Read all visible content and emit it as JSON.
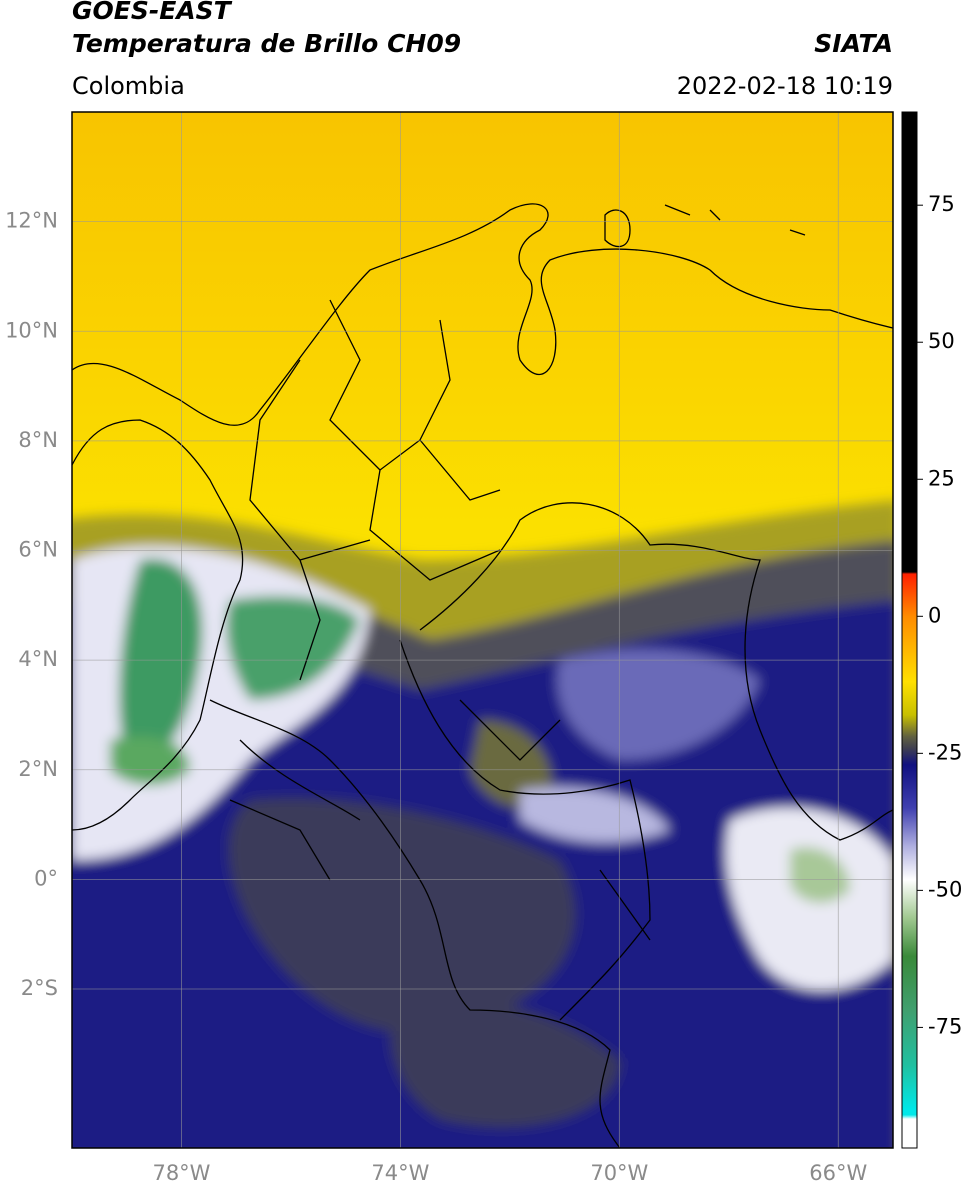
{
  "header": {
    "title": "GOES-EAST",
    "subtitle": "Temperatura de Brillo CH09",
    "brand": "SIATA",
    "region": "Colombia",
    "datetime": "2022-02-18 10:19"
  },
  "map": {
    "xlim": [
      -80,
      -65
    ],
    "ylim": [
      -4.9,
      14
    ],
    "xticks": [
      {
        "value": -78,
        "label": "78°W"
      },
      {
        "value": -74,
        "label": "74°W"
      },
      {
        "value": -70,
        "label": "70°W"
      },
      {
        "value": -66,
        "label": "66°W"
      }
    ],
    "yticks": [
      {
        "value": 12,
        "label": "12°N"
      },
      {
        "value": 10,
        "label": "10°N"
      },
      {
        "value": 8,
        "label": "8°N"
      },
      {
        "value": 6,
        "label": "6°N"
      },
      {
        "value": 4,
        "label": "4°N"
      },
      {
        "value": 2,
        "label": "2°N"
      },
      {
        "value": 0,
        "label": "0°"
      },
      {
        "value": -2,
        "label": "2°S"
      }
    ],
    "grid": true
  },
  "colorbar": {
    "clim": [
      -97,
      92
    ],
    "ticks": [
      75,
      50,
      25,
      0,
      -25,
      -50,
      -75
    ]
  }
}
